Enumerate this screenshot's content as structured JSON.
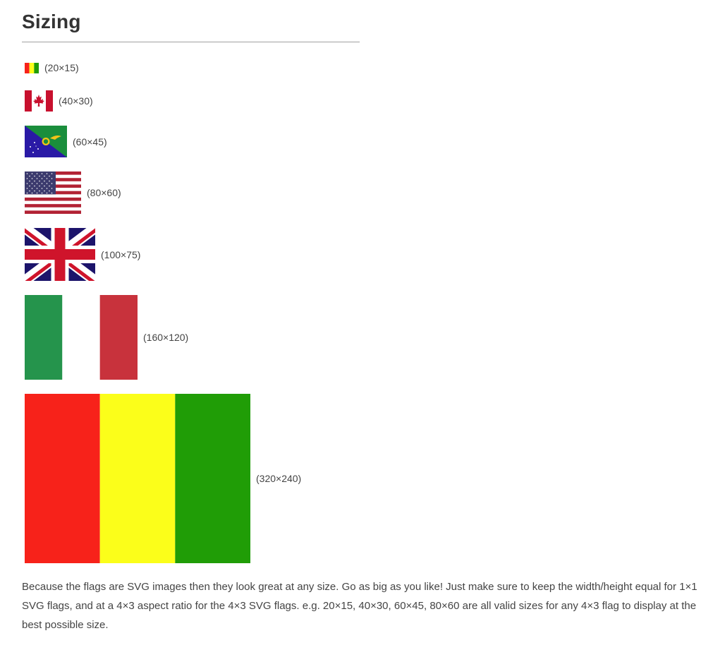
{
  "section": {
    "title": "Sizing"
  },
  "colors": {
    "guinea_red": "#f7221a",
    "guinea_yellow": "#fbfe1a",
    "guinea_green": "#209d06",
    "canada_red": "#c8102e",
    "italy_green": "#25944c",
    "italy_red": "#c8323c",
    "uk_blue": "#1c146b",
    "uk_red": "#cf142b",
    "us_red": "#b22234",
    "us_blue": "#3c3b6e"
  },
  "flags": [
    {
      "icon": "guinea-flag-icon",
      "label": "(20×15)"
    },
    {
      "icon": "canada-flag-icon",
      "label": "(40×30)"
    },
    {
      "icon": "christmas-island-flag-icon",
      "label": "(60×45)"
    },
    {
      "icon": "usa-flag-icon",
      "label": "(80×60)"
    },
    {
      "icon": "uk-flag-icon",
      "label": "(100×75)"
    },
    {
      "icon": "italy-flag-icon",
      "label": "(160×120)"
    },
    {
      "icon": "guinea-flag-icon",
      "label": "(320×240)"
    }
  ],
  "description": "Because the flags are SVG images then they look great at any size. Go as big as you like! Just make sure to keep the width/height equal for 1×1 SVG flags, and at a 4×3 aspect ratio for the 4×3 SVG flags. e.g. 20×15, 40×30, 60×45, 80×60 are all valid sizes for any 4×3 flag to display at the best possible size."
}
